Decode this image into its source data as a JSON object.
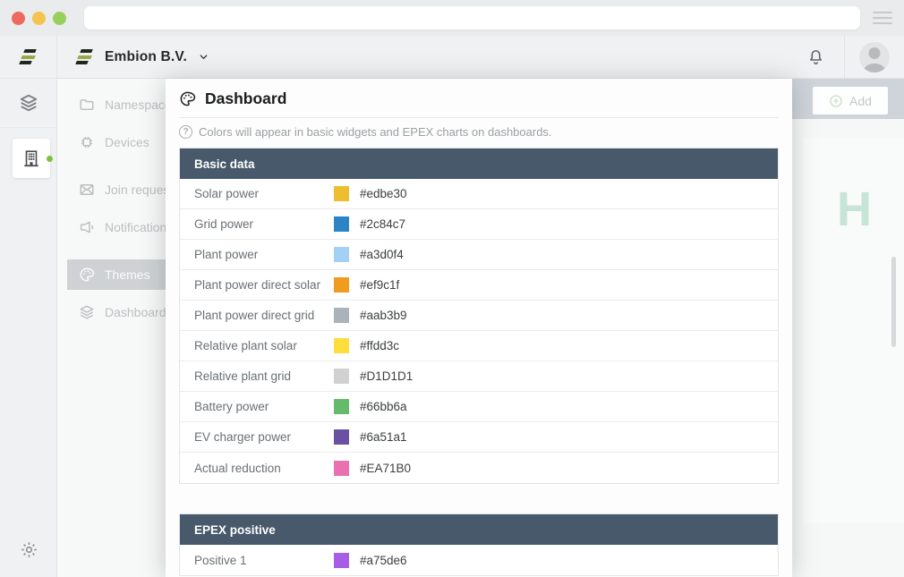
{
  "browser": {
    "url_value": ""
  },
  "topbar": {
    "org_name": "Embion B.V."
  },
  "sidebar": {
    "items": [
      {
        "label": "Namespaces",
        "icon": "folder-icon",
        "selected": false,
        "group": 0
      },
      {
        "label": "Devices",
        "icon": "chip-icon",
        "selected": false,
        "group": 0
      },
      {
        "label": "Join requests",
        "icon": "envelope-icon",
        "selected": false,
        "group": 1
      },
      {
        "label": "Notifications",
        "icon": "megaphone-icon",
        "selected": false,
        "group": 1
      },
      {
        "label": "Themes",
        "icon": "palette-icon",
        "selected": true,
        "group": 2
      },
      {
        "label": "Dashboard templates",
        "icon": "layers-icon",
        "selected": false,
        "group": 2
      }
    ]
  },
  "background_page": {
    "add_button_label": "Add",
    "watermark_letter": "H"
  },
  "modal": {
    "title": "Dashboard",
    "info_text": "Colors will appear in basic widgets and EPEX charts on dashboards.",
    "sections": [
      {
        "title": "Basic data",
        "rows": [
          {
            "label": "Solar power",
            "color": "#edbe30"
          },
          {
            "label": "Grid power",
            "color": "#2c84c7"
          },
          {
            "label": "Plant power",
            "color": "#a3d0f4"
          },
          {
            "label": "Plant power direct solar",
            "color": "#ef9c1f"
          },
          {
            "label": "Plant power direct grid",
            "color": "#aab3b9"
          },
          {
            "label": "Relative plant solar",
            "color": "#ffdd3c"
          },
          {
            "label": "Relative plant grid",
            "color": "#D1D1D1"
          },
          {
            "label": "Battery power",
            "color": "#66bb6a"
          },
          {
            "label": "EV charger power",
            "color": "#6a51a1"
          },
          {
            "label": "Actual reduction",
            "color": "#EA71B0"
          }
        ]
      },
      {
        "title": "EPEX positive",
        "rows": [
          {
            "label": "Positive 1",
            "color": "#a75de6"
          }
        ]
      }
    ]
  },
  "colors": {
    "brand_olive": "#9aa84b",
    "table_header_bg": "#47596a",
    "online_dot_green": "#7cc142",
    "watermark_teal": "#c4e0d4"
  }
}
